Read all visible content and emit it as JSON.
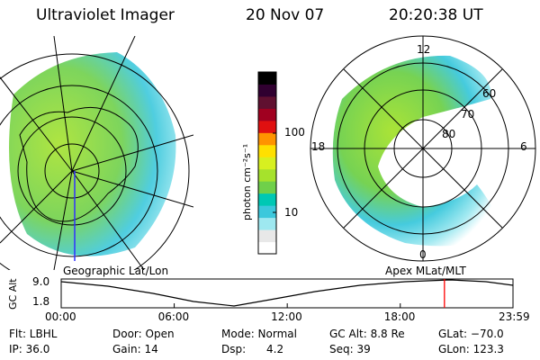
{
  "header": {
    "instrument": "Ultraviolet Imager",
    "date": "20 Nov 07",
    "time": "20:20:38 UT"
  },
  "colorbar": {
    "unit_label": "photon cm⁻²s⁻¹",
    "ticks": [
      "100",
      "10"
    ],
    "colors": [
      "#ffffff",
      "#e8e8e8",
      "#9ee8f0",
      "#3cc8dc",
      "#00c8b4",
      "#6fd04a",
      "#a6e22c",
      "#d7f020",
      "#ffe000",
      "#ff9400",
      "#e01010",
      "#a00020",
      "#601030",
      "#300030",
      "#000000"
    ]
  },
  "map_geo": {
    "caption": "Geographic Lat/Lon"
  },
  "map_apex": {
    "caption": "Apex  MLat/MLT",
    "mlt_labels": {
      "top": "12",
      "left": "18",
      "right": "6",
      "bottom": "0"
    },
    "lat_labels": [
      "60",
      "70",
      "80"
    ]
  },
  "timeline": {
    "axis_title": "GC Alt",
    "y_ticks": [
      "9.0",
      "1.8"
    ],
    "x_ticks": [
      "00:00",
      "06:00",
      "12:00",
      "18:00",
      "23:59"
    ],
    "marker_time": "20:20:38",
    "marker_color": "#ff0000"
  },
  "footer": {
    "row1": [
      "Flt: LBHL",
      "Door: Open",
      "Mode: Normal",
      "GC Alt: 8.8 Re",
      "GLat: −70.0"
    ],
    "row2": [
      "IP: 36.0",
      "Gain: 14",
      "Dsp:      4.2",
      "Seq: 39",
      "GLon: 123.3"
    ]
  }
}
